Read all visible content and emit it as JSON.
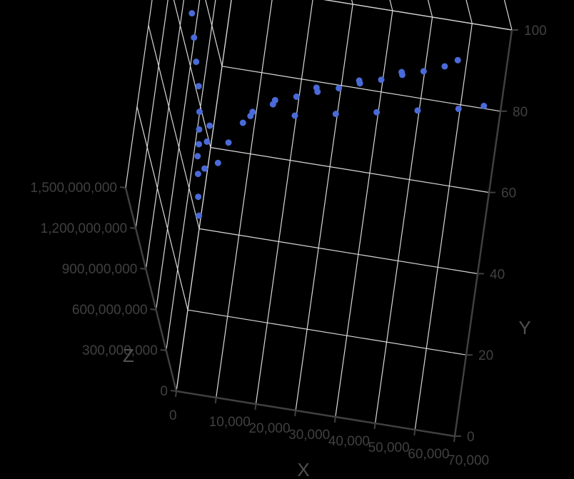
{
  "chart_data": {
    "type": "scatter",
    "projection": "3d",
    "title": "",
    "xlabel": "X",
    "ylabel": "Y",
    "zlabel": "Z",
    "xlim": [
      0,
      70000
    ],
    "ylim": [
      0,
      100
    ],
    "zlim": [
      0,
      1500000000
    ],
    "grid": true,
    "x_ticks": [
      "0",
      "10,000",
      "20,000",
      "30,000",
      "40,000",
      "50,000",
      "60,000",
      "70,000"
    ],
    "y_ticks": [
      "0",
      "20",
      "40",
      "60",
      "80",
      "100"
    ],
    "z_ticks": [
      "0",
      "300,000,000",
      "600,000,000",
      "900,000,000",
      "1,200,000,000",
      "1,500,000,000"
    ],
    "marker_color": "#4a6ad8",
    "series": [
      {
        "points": [
          [
            800,
            40,
            100000000
          ],
          [
            1000,
            42,
            180000000
          ],
          [
            1200,
            45,
            260000000
          ],
          [
            1300,
            50,
            330000000
          ],
          [
            1500,
            55,
            420000000
          ],
          [
            1700,
            58,
            520000000
          ],
          [
            1800,
            60,
            640000000
          ],
          [
            2000,
            62,
            760000000
          ],
          [
            2200,
            64,
            880000000
          ],
          [
            2300,
            66,
            1000000000
          ],
          [
            2500,
            68,
            1120000000
          ],
          [
            2700,
            70,
            1220000000
          ],
          [
            2900,
            72,
            1300000000
          ],
          [
            3100,
            74,
            1360000000
          ],
          [
            3500,
            76,
            1400000000
          ],
          [
            4500,
            77,
            1420000000
          ],
          [
            6000,
            78,
            1430000000
          ],
          [
            1200,
            50,
            150000000
          ],
          [
            1500,
            55,
            200000000
          ],
          [
            2000,
            58,
            230000000
          ],
          [
            1000,
            48,
            300000000
          ],
          [
            1500,
            52,
            380000000
          ],
          [
            3000,
            55,
            50000000
          ],
          [
            5000,
            60,
            60000000
          ],
          [
            8000,
            65,
            70000000
          ],
          [
            10000,
            68,
            70000000
          ],
          [
            15000,
            72,
            60000000
          ],
          [
            20000,
            74,
            50000000
          ],
          [
            25000,
            76,
            50000000
          ],
          [
            30000,
            78,
            40000000
          ],
          [
            35000,
            80,
            40000000
          ],
          [
            40000,
            82,
            30000000
          ],
          [
            45000,
            84,
            30000000
          ],
          [
            50000,
            86,
            20000000
          ],
          [
            55000,
            88,
            20000000
          ],
          [
            58000,
            90,
            20000000
          ],
          [
            20000,
            70,
            30000000
          ],
          [
            30000,
            72,
            30000000
          ],
          [
            40000,
            74,
            30000000
          ],
          [
            50000,
            76,
            30000000
          ],
          [
            60000,
            78,
            30000000
          ],
          [
            66000,
            80,
            20000000
          ],
          [
            10000,
            66,
            100000000
          ],
          [
            15000,
            70,
            90000000
          ],
          [
            25000,
            76,
            80000000
          ],
          [
            35000,
            80,
            60000000
          ],
          [
            45000,
            84,
            50000000
          ]
        ]
      }
    ]
  }
}
